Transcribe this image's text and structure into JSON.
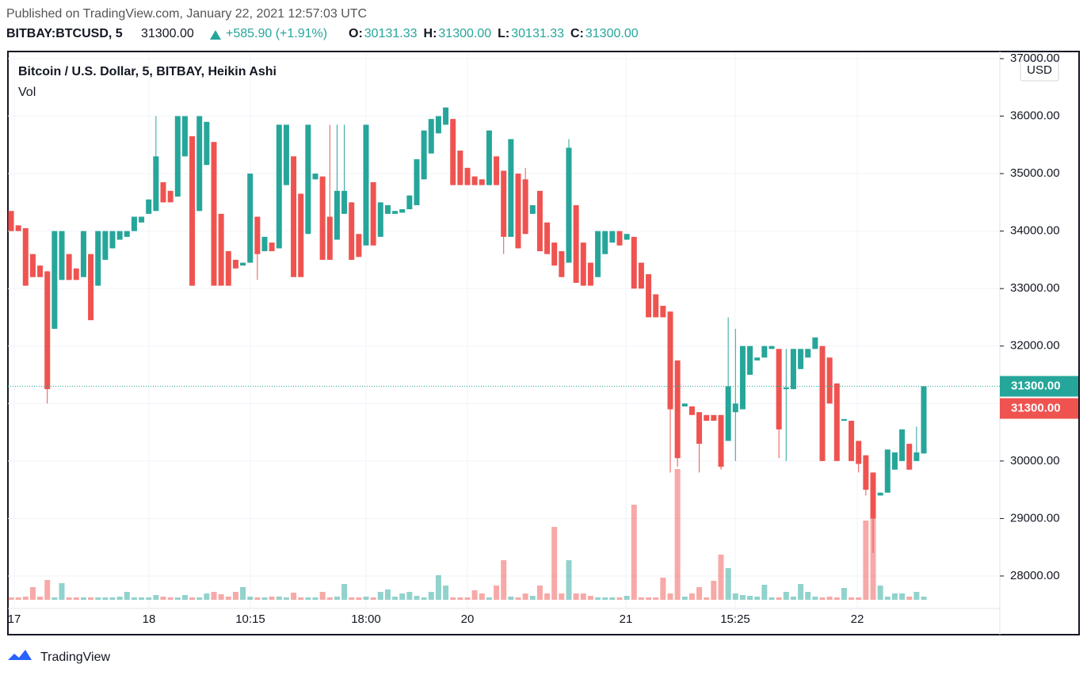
{
  "chart_data": {
    "type": "candlestick",
    "published": "Published on TradingView.com, January 22, 2021 12:57:03 UTC",
    "symbol": "BITBAY:BTCUSD, 5",
    "price": "31300.00",
    "change": "+585.90 (+1.91%)",
    "ohlc": [
      {
        "label": "O:",
        "value": "30131.33"
      },
      {
        "label": "H:",
        "value": "31300.00"
      },
      {
        "label": "L:",
        "value": "30131.33"
      },
      {
        "label": "C:",
        "value": "31300.00"
      }
    ],
    "title": "Bitcoin / U.S. Dollar, 5, BITBAY, Heikin Ashi",
    "volume_label": "Vol",
    "currency": "USD",
    "footer": "TradingView",
    "up_color": "#26a69a",
    "down_color": "#ef5350",
    "ylim": [
      27560,
      37000
    ],
    "yticks": [
      {
        "value": 28000,
        "label": "28000.00"
      },
      {
        "value": 29000,
        "label": "29000.00"
      },
      {
        "value": 30000,
        "label": "30000.00"
      },
      {
        "value": 31000,
        "label": "31000.00"
      },
      {
        "value": 32000,
        "label": "32000.00"
      },
      {
        "value": 33000,
        "label": "33000.00"
      },
      {
        "value": 34000,
        "label": "34000.00"
      },
      {
        "value": 35000,
        "label": "35000.00"
      },
      {
        "value": 36000,
        "label": "36000.00"
      },
      {
        "value": 37000,
        "label": "37000.00"
      }
    ],
    "xlabels": [
      "17",
      "18",
      "10:15",
      "18:00",
      "20",
      "21",
      "15:25",
      "22"
    ],
    "last_price": {
      "value": 31300,
      "label": "31300.00"
    },
    "close_price": {
      "value": 31300,
      "label": "31300.00"
    },
    "candles": [
      [
        34350,
        34350,
        34000,
        34000
      ],
      [
        34100,
        34100,
        34000,
        34000
      ],
      [
        34050,
        34050,
        33050,
        33050
      ],
      [
        33600,
        33600,
        33200,
        33200
      ],
      [
        33400,
        33400,
        33200,
        33200
      ],
      [
        33300,
        33300,
        31000,
        31250
      ],
      [
        32300,
        34000,
        32300,
        34000
      ],
      [
        33150,
        34000,
        33150,
        34000
      ],
      [
        33600,
        33600,
        33150,
        33150
      ],
      [
        33350,
        33350,
        33150,
        33150
      ],
      [
        33200,
        34000,
        33200,
        34000
      ],
      [
        33600,
        33600,
        32450,
        32450
      ],
      [
        33050,
        34000,
        33050,
        34000
      ],
      [
        33500,
        34000,
        33500,
        34000
      ],
      [
        33700,
        34000,
        33700,
        34000
      ],
      [
        33850,
        34000,
        33850,
        34000
      ],
      [
        33900,
        34000,
        33900,
        34000
      ],
      [
        34000,
        34250,
        34000,
        34250
      ],
      [
        34150,
        34250,
        34150,
        34250
      ],
      [
        34300,
        34550,
        34300,
        34550
      ],
      [
        34350,
        36000,
        34350,
        35300
      ],
      [
        34850,
        34850,
        34500,
        34500
      ],
      [
        34700,
        34700,
        34500,
        34500
      ],
      [
        34600,
        36000,
        34600,
        36000
      ],
      [
        35300,
        36000,
        35300,
        36000
      ],
      [
        35650,
        35650,
        33050,
        33050
      ],
      [
        34350,
        36000,
        34350,
        36000
      ],
      [
        35150,
        35900,
        35150,
        35900
      ],
      [
        35550,
        35550,
        33050,
        33050
      ],
      [
        34300,
        34300,
        33050,
        33050
      ],
      [
        33650,
        33650,
        33050,
        33050
      ],
      [
        33500,
        33500,
        33350,
        33350
      ],
      [
        33400,
        33450,
        33400,
        33450
      ],
      [
        33450,
        35000,
        33450,
        35000
      ],
      [
        34250,
        34250,
        33150,
        33600
      ],
      [
        33650,
        33900,
        33650,
        33900
      ],
      [
        33800,
        33800,
        33650,
        33650
      ],
      [
        33700,
        35850,
        33700,
        35850
      ],
      [
        34800,
        35850,
        34800,
        35850
      ],
      [
        35300,
        35300,
        33200,
        33200
      ],
      [
        34650,
        34650,
        33200,
        33200
      ],
      [
        33950,
        35850,
        33950,
        35850
      ],
      [
        34900,
        35000,
        34900,
        35000
      ],
      [
        34950,
        34950,
        33500,
        33500
      ],
      [
        34250,
        35850,
        33500,
        33500
      ],
      [
        33850,
        35850,
        33850,
        34700
      ],
      [
        34300,
        35850,
        34300,
        34700
      ],
      [
        34500,
        34500,
        33500,
        33500
      ],
      [
        33950,
        33950,
        33550,
        33550
      ],
      [
        33750,
        35850,
        33750,
        35850
      ],
      [
        34850,
        34850,
        33750,
        33750
      ],
      [
        33900,
        34500,
        33900,
        34500
      ],
      [
        34300,
        34450,
        34300,
        34450
      ],
      [
        34300,
        34350,
        34300,
        34350
      ],
      [
        34320,
        34380,
        34320,
        34380
      ],
      [
        34380,
        34620,
        34380,
        34620
      ],
      [
        34450,
        35250,
        34450,
        35250
      ],
      [
        34900,
        35750,
        34900,
        35750
      ],
      [
        35350,
        35950,
        35350,
        35950
      ],
      [
        35700,
        36000,
        35700,
        36000
      ],
      [
        35850,
        36150,
        35850,
        36150
      ],
      [
        35950,
        35950,
        34800,
        34800
      ],
      [
        35400,
        35400,
        34800,
        34800
      ],
      [
        35100,
        35100,
        34800,
        34800
      ],
      [
        34950,
        34950,
        34800,
        34800
      ],
      [
        34900,
        34900,
        34800,
        34800
      ],
      [
        34800,
        35750,
        34800,
        35750
      ],
      [
        35300,
        35300,
        34800,
        34800
      ],
      [
        35050,
        35050,
        33600,
        33900
      ],
      [
        33900,
        35600,
        33900,
        35600
      ],
      [
        35000,
        35000,
        33700,
        33700
      ],
      [
        34900,
        35100,
        33950,
        33950
      ],
      [
        34300,
        34450,
        34300,
        34450
      ],
      [
        34700,
        34700,
        33650,
        33650
      ],
      [
        34150,
        34150,
        33600,
        33600
      ],
      [
        33800,
        33800,
        33400,
        33400
      ],
      [
        33650,
        33650,
        33200,
        33200
      ],
      [
        33450,
        35600,
        33450,
        35450
      ],
      [
        34450,
        34450,
        33100,
        33100
      ],
      [
        33800,
        33800,
        33050,
        33050
      ],
      [
        33450,
        33450,
        33050,
        33050
      ],
      [
        33200,
        34000,
        33200,
        34000
      ],
      [
        33600,
        34000,
        33600,
        34000
      ],
      [
        33800,
        34000,
        33800,
        34000
      ],
      [
        34000,
        34000,
        33750,
        33750
      ],
      [
        33850,
        33950,
        33850,
        33950
      ],
      [
        33900,
        33900,
        33000,
        33000
      ],
      [
        33450,
        33450,
        33000,
        33000
      ],
      [
        33250,
        33250,
        32500,
        32500
      ],
      [
        32900,
        32900,
        32500,
        32500
      ],
      [
        32700,
        32700,
        32500,
        32500
      ],
      [
        32600,
        32600,
        29800,
        30900
      ],
      [
        31750,
        31750,
        29900,
        30050
      ],
      [
        30950,
        31000,
        30950,
        31000
      ],
      [
        30950,
        30950,
        30800,
        30800
      ],
      [
        30850,
        30850,
        29800,
        30300
      ],
      [
        30800,
        30800,
        30700,
        30700
      ],
      [
        30800,
        30800,
        30700,
        30700
      ],
      [
        30800,
        30800,
        29850,
        29900
      ],
      [
        30350,
        32500,
        30350,
        31300
      ],
      [
        30850,
        32300,
        30000,
        31000
      ],
      [
        30900,
        32000,
        30900,
        32000
      ],
      [
        31500,
        32000,
        31500,
        32000
      ],
      [
        31750,
        31800,
        31750,
        31800
      ],
      [
        31800,
        32000,
        31800,
        32000
      ],
      [
        31950,
        32000,
        31950,
        32000
      ],
      [
        31950,
        31950,
        30050,
        30550
      ],
      [
        31250,
        31950,
        30000,
        31280
      ],
      [
        31250,
        31950,
        31250,
        31950
      ],
      [
        31600,
        31950,
        31600,
        31950
      ],
      [
        31800,
        31950,
        31800,
        31950
      ],
      [
        31950,
        32150,
        31950,
        32150
      ],
      [
        32000,
        32000,
        30000,
        30000
      ],
      [
        31800,
        31800,
        31000,
        31000
      ],
      [
        31350,
        31350,
        30000,
        30000
      ],
      [
        30700,
        30730,
        30700,
        30730
      ],
      [
        30700,
        30700,
        30000,
        30000
      ],
      [
        30350,
        30350,
        29800,
        29950
      ],
      [
        30100,
        30100,
        29400,
        29500
      ],
      [
        29800,
        29800,
        28400,
        29000
      ],
      [
        29400,
        29450,
        29400,
        29450
      ],
      [
        29450,
        30200,
        29450,
        30200
      ],
      [
        29850,
        30150,
        29850,
        30150
      ],
      [
        30000,
        30550,
        30000,
        30550
      ],
      [
        30300,
        30300,
        29850,
        29850
      ],
      [
        30000,
        30600,
        30000,
        30150
      ],
      [
        30131.33,
        31300,
        30131.33,
        31300
      ]
    ],
    "volume": [
      3,
      3,
      4,
      16,
      4,
      25,
      3,
      21,
      3,
      3,
      3,
      3,
      3,
      3,
      3,
      4,
      10,
      3,
      3,
      3,
      6,
      4,
      3,
      3,
      6,
      3,
      3,
      8,
      10,
      7,
      4,
      10,
      16,
      4,
      3,
      3,
      4,
      4,
      3,
      9,
      3,
      3,
      3,
      10,
      3,
      4,
      20,
      3,
      3,
      4,
      3,
      10,
      13,
      4,
      8,
      10,
      5,
      3,
      10,
      31,
      18,
      3,
      3,
      3,
      12,
      8,
      3,
      18,
      50,
      4,
      3,
      8,
      5,
      18,
      8,
      92,
      8,
      50,
      8,
      8,
      5,
      3,
      3,
      3,
      3,
      5,
      120,
      3,
      3,
      3,
      28,
      8,
      165,
      4,
      8,
      16,
      3,
      24,
      57,
      40,
      8,
      6,
      5,
      4,
      19,
      3,
      3,
      10,
      4,
      20,
      10,
      4,
      3,
      4,
      3,
      15,
      3,
      3,
      100,
      132,
      18,
      4,
      8,
      8,
      4,
      10,
      4
    ]
  }
}
